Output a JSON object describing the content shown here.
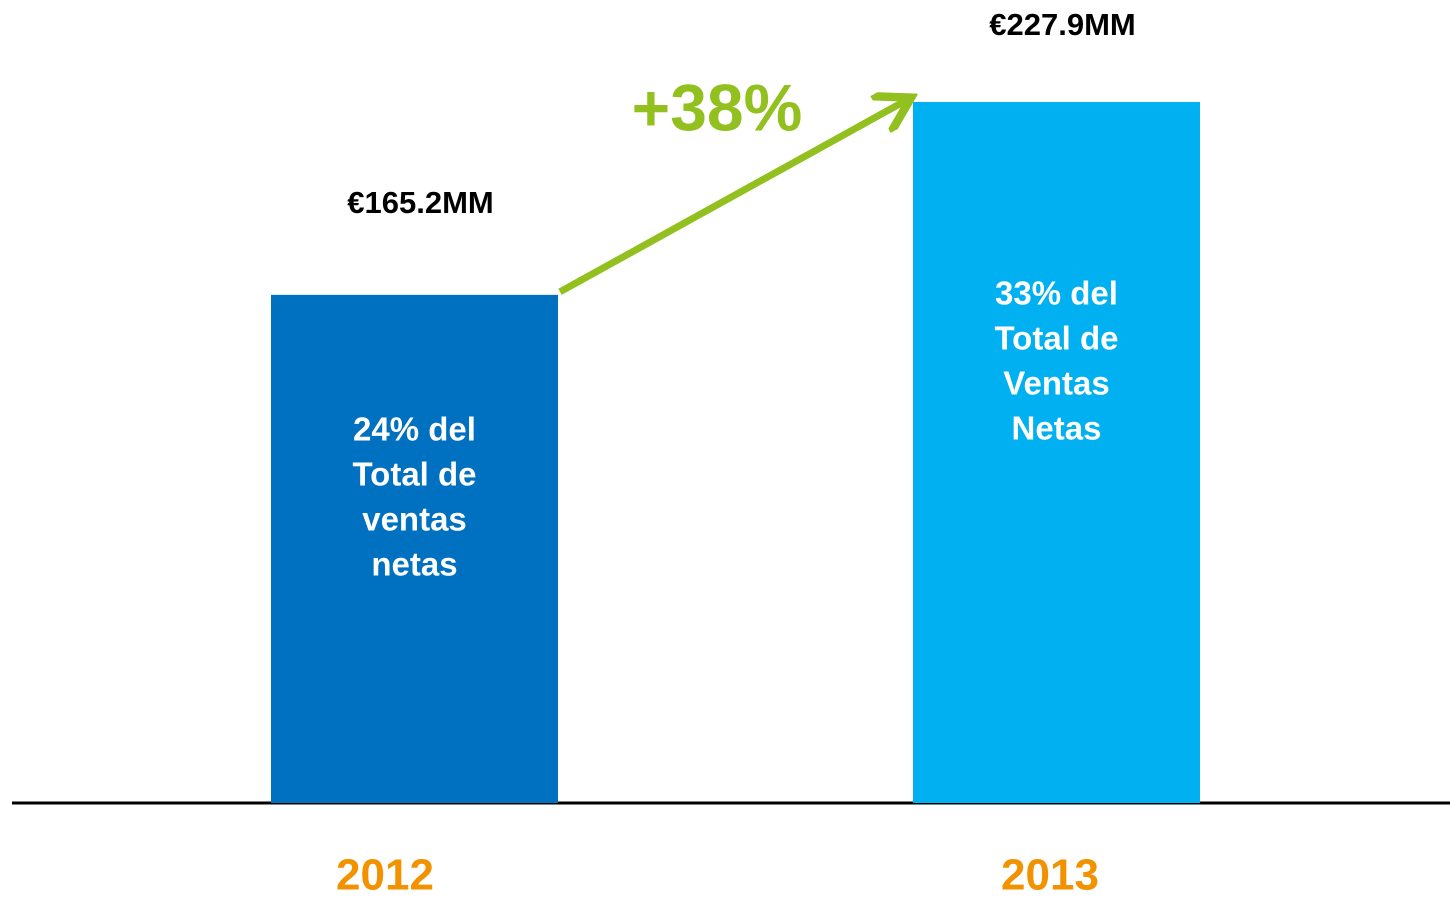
{
  "chart_data": {
    "type": "bar",
    "categories": [
      "2012",
      "2013"
    ],
    "values": [
      165.2,
      227.9
    ],
    "value_labels": [
      "€165.2MM",
      "€227.9MM"
    ],
    "colors": [
      "#0070c0",
      "#00b0f0"
    ],
    "category_color": "#f39200",
    "bar_texts": [
      [
        "24% del",
        "Total de",
        "ventas",
        "netas"
      ],
      [
        "33% del",
        "Total de",
        "Ventas",
        "Netas"
      ]
    ],
    "annotation": "+38%",
    "annotation_color": "#92c01f"
  }
}
